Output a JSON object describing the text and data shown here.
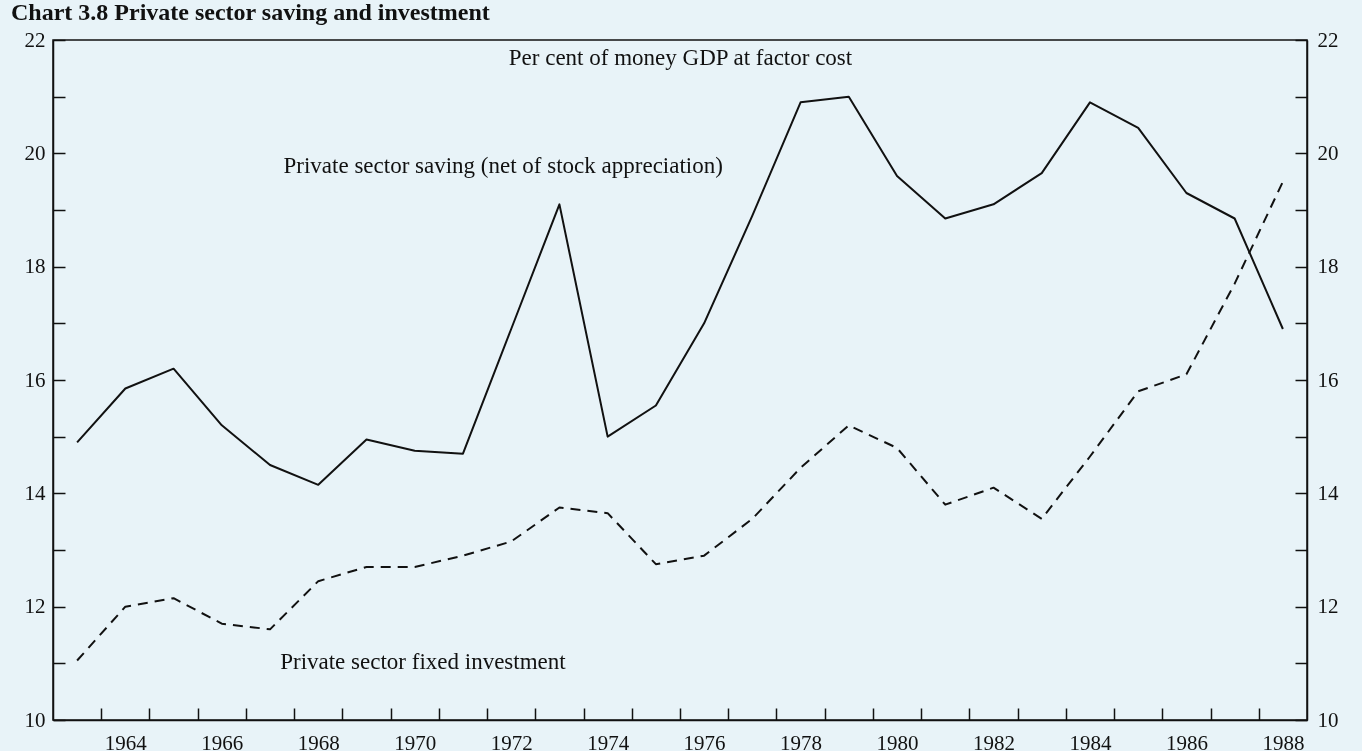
{
  "chart_data": {
    "type": "line",
    "title": "Chart 3.8 Private sector saving and investment",
    "ylabel": "Per cent of money GDP at factor cost",
    "x": [
      1963,
      1964,
      1965,
      1966,
      1967,
      1968,
      1969,
      1970,
      1971,
      1972,
      1973,
      1974,
      1975,
      1976,
      1977,
      1978,
      1979,
      1980,
      1981,
      1982,
      1983,
      1984,
      1985,
      1986,
      1987,
      1988
    ],
    "xlim": [
      1962.5,
      1988.5
    ],
    "xticks": [
      {
        "value": 1963.5,
        "label": null
      },
      1964,
      {
        "value": 1964.5,
        "label": null
      },
      {
        "value": 1965.5,
        "label": null
      },
      1966,
      {
        "value": 1966.5,
        "label": null
      },
      {
        "value": 1967.5,
        "label": null
      },
      1968,
      {
        "value": 1968.5,
        "label": null
      },
      {
        "value": 1969.5,
        "label": null
      },
      1970,
      {
        "value": 1970.5,
        "label": null
      },
      {
        "value": 1971.5,
        "label": null
      },
      1972,
      {
        "value": 1972.5,
        "label": null
      },
      {
        "value": 1973.5,
        "label": null
      },
      1974,
      {
        "value": 1974.5,
        "label": null
      },
      {
        "value": 1975.5,
        "label": null
      },
      1976,
      {
        "value": 1976.5,
        "label": null
      },
      {
        "value": 1977.5,
        "label": null
      },
      1978,
      {
        "value": 1978.5,
        "label": null
      },
      {
        "value": 1979.5,
        "label": null
      },
      1980,
      {
        "value": 1980.5,
        "label": null
      },
      {
        "value": 1981.5,
        "label": null
      },
      1982,
      {
        "value": 1982.5,
        "label": null
      },
      {
        "value": 1983.5,
        "label": null
      },
      1984,
      {
        "value": 1984.5,
        "label": null
      },
      {
        "value": 1985.5,
        "label": null
      },
      1986,
      {
        "value": 1986.5,
        "label": null
      },
      {
        "value": 1987.5,
        "label": null
      },
      1988
    ],
    "ylim": [
      10,
      22
    ],
    "yticks": [
      10,
      {
        "value": 11,
        "label": null
      },
      12,
      {
        "value": 13,
        "label": null
      },
      14,
      {
        "value": 15,
        "label": null
      },
      16,
      {
        "value": 17,
        "label": null
      },
      18,
      {
        "value": 19,
        "label": null
      },
      20,
      {
        "value": 21,
        "label": null
      },
      22
    ],
    "y2lim": [
      10,
      22
    ],
    "y2ticks": [
      10,
      {
        "value": 11,
        "label": null
      },
      12,
      {
        "value": 13,
        "label": null
      },
      14,
      {
        "value": 15,
        "label": null
      },
      16,
      {
        "value": 17,
        "label": null
      },
      18,
      {
        "value": 19,
        "label": null
      },
      20,
      {
        "value": 21,
        "label": null
      },
      22
    ],
    "series": [
      {
        "name": "Private sector saving (net of stock appreciation)",
        "color": "#111111",
        "line_style": "solid",
        "values": [
          14.9,
          15.85,
          16.2,
          15.2,
          14.5,
          14.15,
          14.95,
          14.75,
          14.7,
          16.9,
          19.1,
          15.0,
          15.55,
          17.0,
          18.9,
          20.9,
          21.0,
          19.6,
          18.85,
          19.1,
          19.65,
          20.9,
          20.45,
          19.3,
          18.85,
          16.9
        ]
      },
      {
        "name": "Private sector fixed investment",
        "color": "#111111",
        "line_style": "dashed",
        "values": [
          11.05,
          12.0,
          12.15,
          11.7,
          11.6,
          12.45,
          12.7,
          12.7,
          12.9,
          13.15,
          13.75,
          13.65,
          12.75,
          12.9,
          13.55,
          14.45,
          15.2,
          14.8,
          13.8,
          14.1,
          13.55,
          14.65,
          15.8,
          16.1,
          17.7,
          19.5
        ]
      }
    ]
  }
}
